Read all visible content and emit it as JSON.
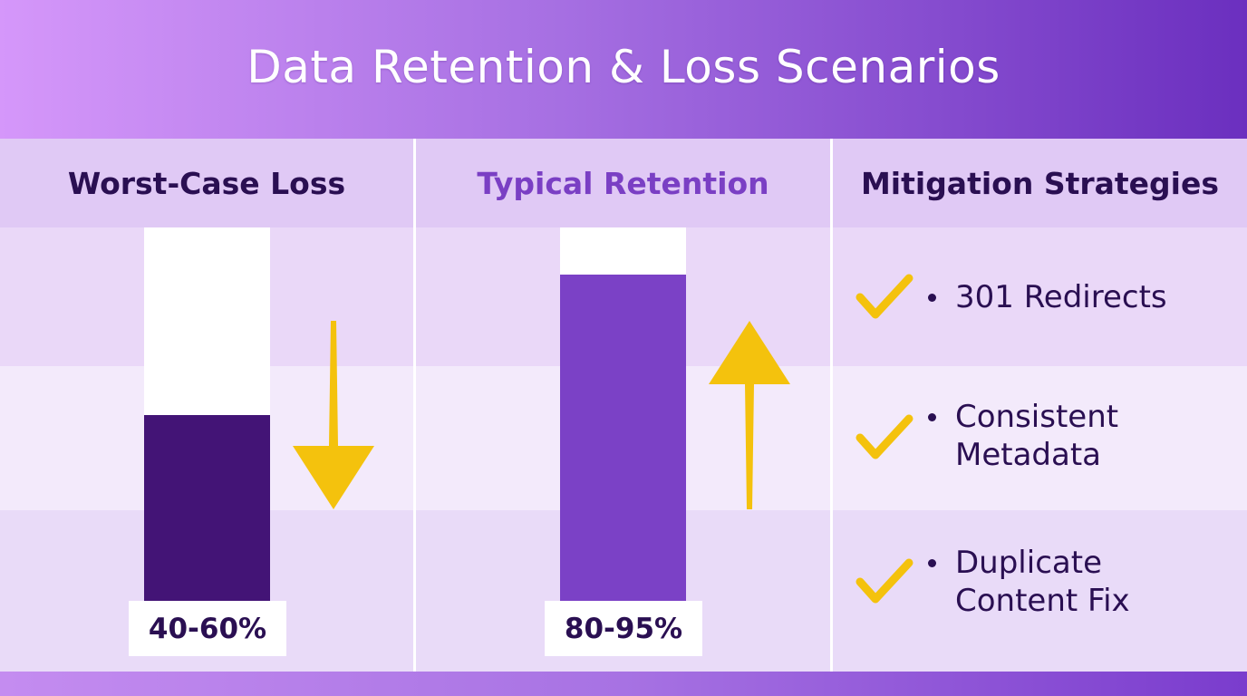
{
  "title": "Data Retention & Loss Scenarios",
  "columns": [
    {
      "heading": "Worst-Case Loss",
      "heading_color": "#2a0f52"
    },
    {
      "heading": "Typical Retention",
      "heading_color": "#7a3fc4"
    },
    {
      "heading": "Mitigation Strategies",
      "heading_color": "#2a0f52"
    }
  ],
  "chart_data": {
    "type": "bar",
    "categories": [
      "Worst-Case Loss",
      "Typical Retention"
    ],
    "values": [
      50,
      87.5
    ],
    "ylim": [
      0,
      100
    ],
    "value_labels": [
      "40-60%",
      "80-95%"
    ],
    "colors": [
      "#431476",
      "#7b41c6"
    ],
    "trend_arrows": [
      "down",
      "up"
    ]
  },
  "mitigation": {
    "items": [
      {
        "text": "301 Redirects",
        "icon": "check-icon"
      },
      {
        "text": "Consistent\nMetadata",
        "icon": "check-icon"
      },
      {
        "text": "Duplicate\nContent Fix",
        "icon": "check-icon"
      }
    ]
  },
  "colors": {
    "accent_yellow": "#f4c20d",
    "dark_text": "#2a0f52",
    "track": "#ffffff"
  }
}
